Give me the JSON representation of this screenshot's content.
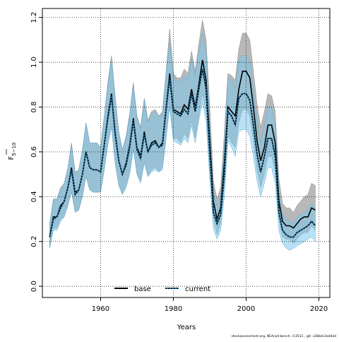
{
  "chart_data": {
    "type": "line",
    "xlabel": "Years",
    "ylabel_main": "F",
    "ylabel_sub": "5−10",
    "xlim": [
      1944,
      2023
    ],
    "ylim": [
      -0.05,
      1.24
    ],
    "xticks": [
      1960,
      1980,
      2000,
      2020
    ],
    "yticks": [
      0.0,
      0.2,
      0.4,
      0.6,
      0.8,
      1.0,
      1.2
    ],
    "ytick_labels": [
      "0.0",
      "0.2",
      "0.4",
      "0.6",
      "0.8",
      "1.0",
      "1.2"
    ],
    "grid": true,
    "legend_position": "bottom-center",
    "footer": "stockassessment.org, NEAcod-bench, r13511 , git: c28bdc2a44ad",
    "colors": {
      "base_band": "#a0a0a0",
      "current_band": "#7ec8ec",
      "base_line": "#000000",
      "current_line": "#2a7ba8"
    },
    "years": [
      1946,
      1947,
      1948,
      1949,
      1950,
      1951,
      1952,
      1953,
      1954,
      1955,
      1956,
      1957,
      1958,
      1959,
      1960,
      1961,
      1962,
      1963,
      1964,
      1965,
      1966,
      1967,
      1968,
      1969,
      1970,
      1971,
      1972,
      1973,
      1974,
      1975,
      1976,
      1977,
      1978,
      1979,
      1980,
      1981,
      1982,
      1983,
      1984,
      1985,
      1986,
      1987,
      1988,
      1989,
      1990,
      1991,
      1992,
      1993,
      1994,
      1995,
      1996,
      1997,
      1998,
      1999,
      2000,
      2001,
      2002,
      2003,
      2004,
      2005,
      2006,
      2007,
      2008,
      2009,
      2010,
      2011,
      2012,
      2013,
      2014,
      2015,
      2016,
      2017,
      2018,
      2019
    ],
    "series": [
      {
        "name": "base",
        "values": [
          0.22,
          0.31,
          0.31,
          0.36,
          0.38,
          0.44,
          0.53,
          0.42,
          0.43,
          0.5,
          0.6,
          0.53,
          0.52,
          0.52,
          0.51,
          0.63,
          0.76,
          0.86,
          0.69,
          0.56,
          0.5,
          0.55,
          0.63,
          0.75,
          0.62,
          0.58,
          0.69,
          0.6,
          0.64,
          0.65,
          0.62,
          0.64,
          0.8,
          0.95,
          0.79,
          0.78,
          0.77,
          0.81,
          0.79,
          0.88,
          0.8,
          0.9,
          1.01,
          0.92,
          0.65,
          0.38,
          0.3,
          0.35,
          0.55,
          0.8,
          0.78,
          0.76,
          0.88,
          0.96,
          0.96,
          0.93,
          0.8,
          0.65,
          0.56,
          0.62,
          0.72,
          0.72,
          0.64,
          0.38,
          0.29,
          0.27,
          0.27,
          0.26,
          0.28,
          0.3,
          0.31,
          0.31,
          0.35,
          0.34
        ],
        "lower": [
          0.17,
          0.26,
          0.26,
          0.3,
          0.31,
          0.36,
          0.43,
          0.33,
          0.34,
          0.4,
          0.49,
          0.43,
          0.42,
          0.42,
          0.42,
          0.52,
          0.64,
          0.72,
          0.55,
          0.45,
          0.41,
          0.45,
          0.51,
          0.62,
          0.5,
          0.47,
          0.56,
          0.49,
          0.52,
          0.53,
          0.51,
          0.53,
          0.67,
          0.82,
          0.66,
          0.66,
          0.64,
          0.68,
          0.66,
          0.74,
          0.66,
          0.76,
          0.86,
          0.78,
          0.53,
          0.31,
          0.23,
          0.28,
          0.45,
          0.67,
          0.64,
          0.62,
          0.73,
          0.79,
          0.79,
          0.76,
          0.65,
          0.52,
          0.44,
          0.5,
          0.58,
          0.58,
          0.51,
          0.3,
          0.22,
          0.21,
          0.21,
          0.19,
          0.21,
          0.23,
          0.24,
          0.24,
          0.27,
          0.25
        ],
        "upper": [
          0.28,
          0.39,
          0.39,
          0.44,
          0.46,
          0.53,
          0.64,
          0.51,
          0.52,
          0.61,
          0.73,
          0.64,
          0.64,
          0.64,
          0.62,
          0.76,
          0.91,
          1.03,
          0.85,
          0.69,
          0.61,
          0.67,
          0.77,
          0.91,
          0.76,
          0.71,
          0.84,
          0.74,
          0.78,
          0.79,
          0.76,
          0.78,
          0.96,
          1.15,
          0.95,
          0.93,
          0.93,
          0.97,
          0.95,
          1.05,
          0.96,
          1.08,
          1.19,
          1.1,
          0.8,
          0.47,
          0.39,
          0.44,
          0.68,
          0.95,
          0.94,
          0.92,
          1.06,
          1.13,
          1.13,
          1.1,
          0.96,
          0.81,
          0.71,
          0.78,
          0.86,
          0.85,
          0.78,
          0.48,
          0.37,
          0.35,
          0.35,
          0.33,
          0.36,
          0.38,
          0.4,
          0.41,
          0.46,
          0.45
        ]
      },
      {
        "name": "current",
        "values": [
          0.22,
          0.3,
          0.31,
          0.35,
          0.38,
          0.44,
          0.52,
          0.41,
          0.43,
          0.5,
          0.6,
          0.53,
          0.52,
          0.52,
          0.51,
          0.63,
          0.75,
          0.85,
          0.68,
          0.56,
          0.5,
          0.54,
          0.62,
          0.74,
          0.61,
          0.57,
          0.68,
          0.6,
          0.63,
          0.64,
          0.62,
          0.63,
          0.79,
          0.93,
          0.78,
          0.77,
          0.76,
          0.79,
          0.77,
          0.86,
          0.78,
          0.88,
          0.97,
          0.88,
          0.6,
          0.33,
          0.28,
          0.32,
          0.5,
          0.78,
          0.76,
          0.72,
          0.84,
          0.86,
          0.86,
          0.83,
          0.72,
          0.59,
          0.51,
          0.58,
          0.66,
          0.66,
          0.58,
          0.33,
          0.25,
          0.23,
          0.22,
          0.22,
          0.24,
          0.25,
          0.26,
          0.27,
          0.29,
          0.27
        ],
        "lower": [
          0.17,
          0.25,
          0.25,
          0.29,
          0.31,
          0.36,
          0.42,
          0.33,
          0.34,
          0.4,
          0.49,
          0.43,
          0.42,
          0.42,
          0.42,
          0.52,
          0.63,
          0.71,
          0.55,
          0.45,
          0.41,
          0.44,
          0.5,
          0.61,
          0.5,
          0.46,
          0.55,
          0.49,
          0.51,
          0.52,
          0.51,
          0.52,
          0.66,
          0.8,
          0.65,
          0.64,
          0.63,
          0.66,
          0.64,
          0.72,
          0.64,
          0.74,
          0.82,
          0.74,
          0.48,
          0.26,
          0.21,
          0.25,
          0.4,
          0.65,
          0.62,
          0.58,
          0.69,
          0.7,
          0.7,
          0.67,
          0.58,
          0.47,
          0.4,
          0.46,
          0.53,
          0.53,
          0.46,
          0.25,
          0.19,
          0.17,
          0.16,
          0.17,
          0.18,
          0.19,
          0.2,
          0.21,
          0.22,
          0.2
        ],
        "upper": [
          0.28,
          0.38,
          0.39,
          0.43,
          0.46,
          0.53,
          0.63,
          0.5,
          0.52,
          0.61,
          0.73,
          0.64,
          0.64,
          0.64,
          0.62,
          0.76,
          0.9,
          1.02,
          0.84,
          0.69,
          0.61,
          0.66,
          0.76,
          0.9,
          0.75,
          0.7,
          0.83,
          0.73,
          0.77,
          0.78,
          0.76,
          0.76,
          0.95,
          1.09,
          0.93,
          0.92,
          0.91,
          0.94,
          0.92,
          1.02,
          0.94,
          1.04,
          1.13,
          1.04,
          0.74,
          0.41,
          0.36,
          0.4,
          0.62,
          0.93,
          0.92,
          0.88,
          1.01,
          1.03,
          1.03,
          1.0,
          0.88,
          0.73,
          0.64,
          0.72,
          0.8,
          0.8,
          0.72,
          0.42,
          0.32,
          0.3,
          0.29,
          0.28,
          0.31,
          0.32,
          0.33,
          0.34,
          0.37,
          0.35
        ]
      }
    ]
  }
}
